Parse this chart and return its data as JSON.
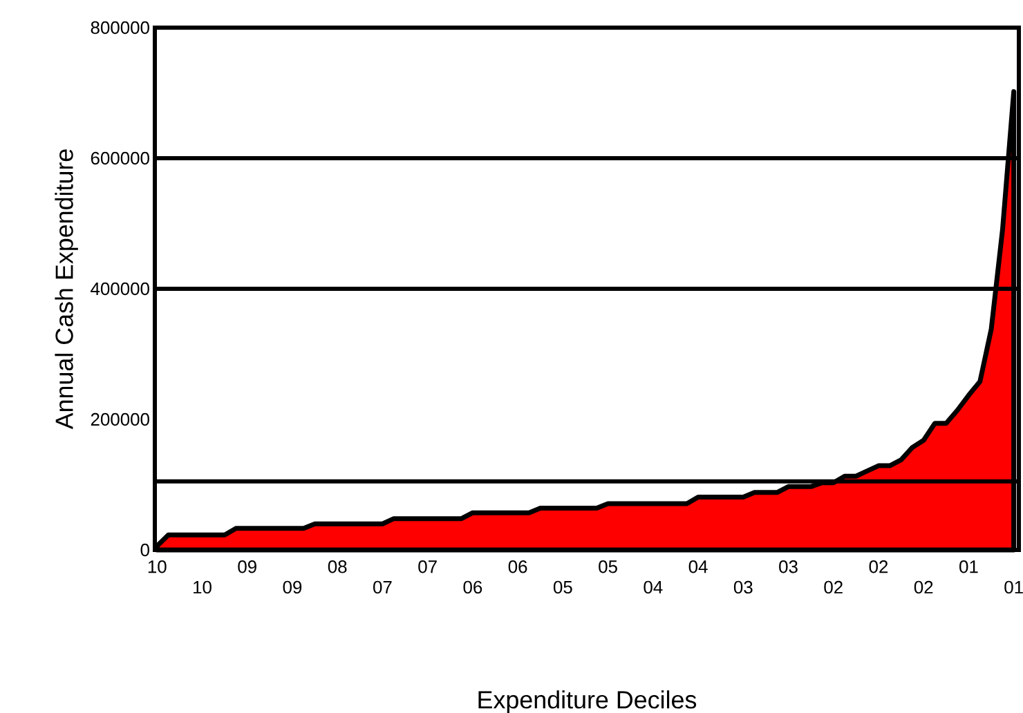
{
  "chart_data": {
    "type": "area",
    "xlabel": "Expenditure Deciles",
    "ylabel": "Annual Cash Expenditure",
    "categories": [
      "10",
      null,
      null,
      null,
      "10",
      null,
      null,
      null,
      "09",
      null,
      null,
      null,
      "09",
      null,
      null,
      null,
      "08",
      null,
      null,
      null,
      "07",
      null,
      null,
      null,
      "07",
      null,
      null,
      null,
      "06",
      null,
      null,
      null,
      "06",
      null,
      null,
      null,
      "05",
      null,
      null,
      null,
      "05",
      null,
      null,
      null,
      "04",
      null,
      null,
      null,
      "04",
      null,
      null,
      null,
      "03",
      null,
      null,
      null,
      "03",
      null,
      null,
      null,
      "02",
      null,
      null,
      null,
      "02",
      null,
      null,
      null,
      "02",
      null,
      null,
      null,
      "01",
      null,
      null,
      null,
      "01"
    ],
    "series": [
      {
        "color": "#ff0000",
        "values": [
          6000,
          23000,
          23000,
          23000,
          23000,
          23000,
          23000,
          33000,
          33000,
          33000,
          33000,
          33000,
          33000,
          33000,
          40000,
          40000,
          40000,
          40000,
          40000,
          40000,
          40000,
          48000,
          48000,
          48000,
          48000,
          48000,
          48000,
          48000,
          57000,
          57000,
          57000,
          57000,
          57000,
          57000,
          64000,
          64000,
          64000,
          64000,
          64000,
          64000,
          71000,
          71000,
          71000,
          71000,
          71000,
          71000,
          71000,
          71000,
          81000,
          81000,
          81000,
          81000,
          81000,
          88000,
          88000,
          88000,
          97000,
          97000,
          97000,
          103000,
          103000,
          113000,
          113000,
          121000,
          129000,
          129000,
          138000,
          157000,
          168000,
          194000,
          194000,
          214000,
          237000,
          258000,
          338000,
          490000,
          702000
        ]
      }
    ],
    "ylim": [
      0,
      800000
    ],
    "yticks": [
      0,
      200000,
      400000,
      600000,
      800000
    ],
    "ref_lines": [
      {
        "axis": "y",
        "value": 105000,
        "color": "#000000"
      },
      {
        "axis": "y",
        "value": 400000,
        "color": "#000000"
      },
      {
        "axis": "y",
        "value": 600000,
        "color": "#000000"
      }
    ]
  }
}
